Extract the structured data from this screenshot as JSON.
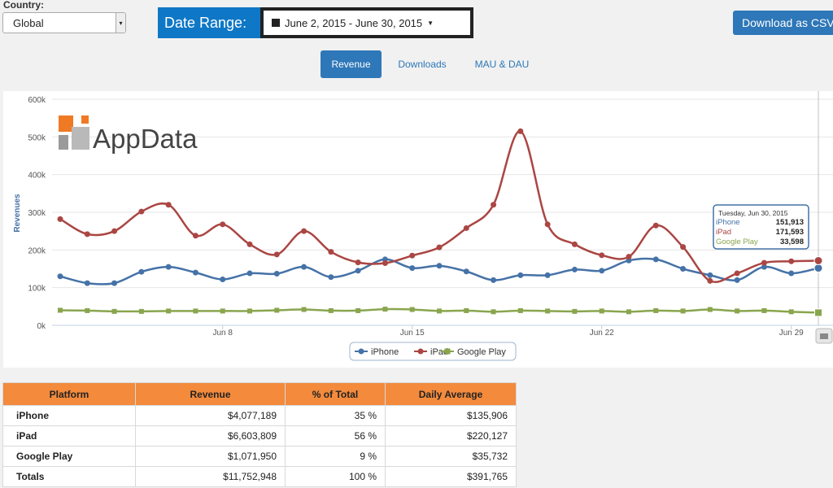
{
  "header": {
    "country_label": "Country:",
    "country_value": "Global",
    "date_range_label": "Date Range:",
    "date_range_value": "June 2, 2015 - June 30, 2015",
    "csv_button": "Download as CSV"
  },
  "tabs": [
    {
      "label": "Revenue",
      "active": true
    },
    {
      "label": "Downloads",
      "active": false
    },
    {
      "label": "MAU & DAU",
      "active": false
    }
  ],
  "logo_text": "AppData",
  "chart_data": {
    "type": "line",
    "ylabel": "Revenues",
    "ylim": [
      0,
      600000
    ],
    "y_ticks": [
      "0k",
      "100k",
      "200k",
      "300k",
      "400k",
      "500k",
      "600k"
    ],
    "x": [
      "Jun 2",
      "Jun 3",
      "Jun 4",
      "Jun 5",
      "Jun 6",
      "Jun 7",
      "Jun 8",
      "Jun 9",
      "Jun 10",
      "Jun 11",
      "Jun 12",
      "Jun 13",
      "Jun 14",
      "Jun 15",
      "Jun 16",
      "Jun 17",
      "Jun 18",
      "Jun 19",
      "Jun 20",
      "Jun 21",
      "Jun 22",
      "Jun 23",
      "Jun 24",
      "Jun 25",
      "Jun 26",
      "Jun 27",
      "Jun 28",
      "Jun 29",
      "Jun 30"
    ],
    "x_tick_labels": [
      "Jun 8",
      "Jun 15",
      "Jun 22",
      "Jun 29"
    ],
    "series": [
      {
        "name": "iPhone",
        "color": "#4572a7",
        "values": [
          130000,
          112000,
          112000,
          142000,
          155000,
          140000,
          122000,
          138000,
          137000,
          155000,
          128000,
          145000,
          175000,
          152000,
          158000,
          143000,
          120000,
          133000,
          133000,
          148000,
          145000,
          172000,
          175000,
          150000,
          133000,
          120000,
          155000,
          138000,
          151913
        ]
      },
      {
        "name": "iPad",
        "color": "#aa4643",
        "values": [
          282000,
          242000,
          250000,
          302000,
          320000,
          238000,
          268000,
          215000,
          188000,
          250000,
          195000,
          167000,
          165000,
          185000,
          207000,
          258000,
          320000,
          515000,
          268000,
          215000,
          186000,
          182000,
          265000,
          208000,
          118000,
          138000,
          166000,
          170000,
          171593
        ]
      },
      {
        "name": "Google Play",
        "color": "#89a54e",
        "values": [
          40000,
          39000,
          37000,
          37000,
          38000,
          38000,
          38000,
          38000,
          40000,
          42000,
          39000,
          39000,
          43000,
          42000,
          38000,
          39000,
          36000,
          39000,
          38000,
          37000,
          38000,
          36000,
          39000,
          38000,
          42000,
          38000,
          39000,
          36000,
          33598
        ]
      }
    ],
    "legend": "bottom-center",
    "tooltip": {
      "date": "Tuesday, Jun 30, 2015",
      "rows": [
        {
          "name": "iPhone",
          "value": "151,913"
        },
        {
          "name": "iPad",
          "value": "171,593"
        },
        {
          "name": "Google Play",
          "value": "33,598"
        }
      ]
    }
  },
  "table": {
    "headers": [
      "Platform",
      "Revenue",
      "% of Total",
      "Daily Average"
    ],
    "rows": [
      [
        "iPhone",
        "$4,077,189",
        "35 %",
        "$135,906"
      ],
      [
        "iPad",
        "$6,603,809",
        "56 %",
        "$220,127"
      ],
      [
        "Google Play",
        "$1,071,950",
        "9 %",
        "$35,732"
      ],
      [
        "Totals",
        "$11,752,948",
        "100 %",
        "$391,765"
      ]
    ]
  }
}
